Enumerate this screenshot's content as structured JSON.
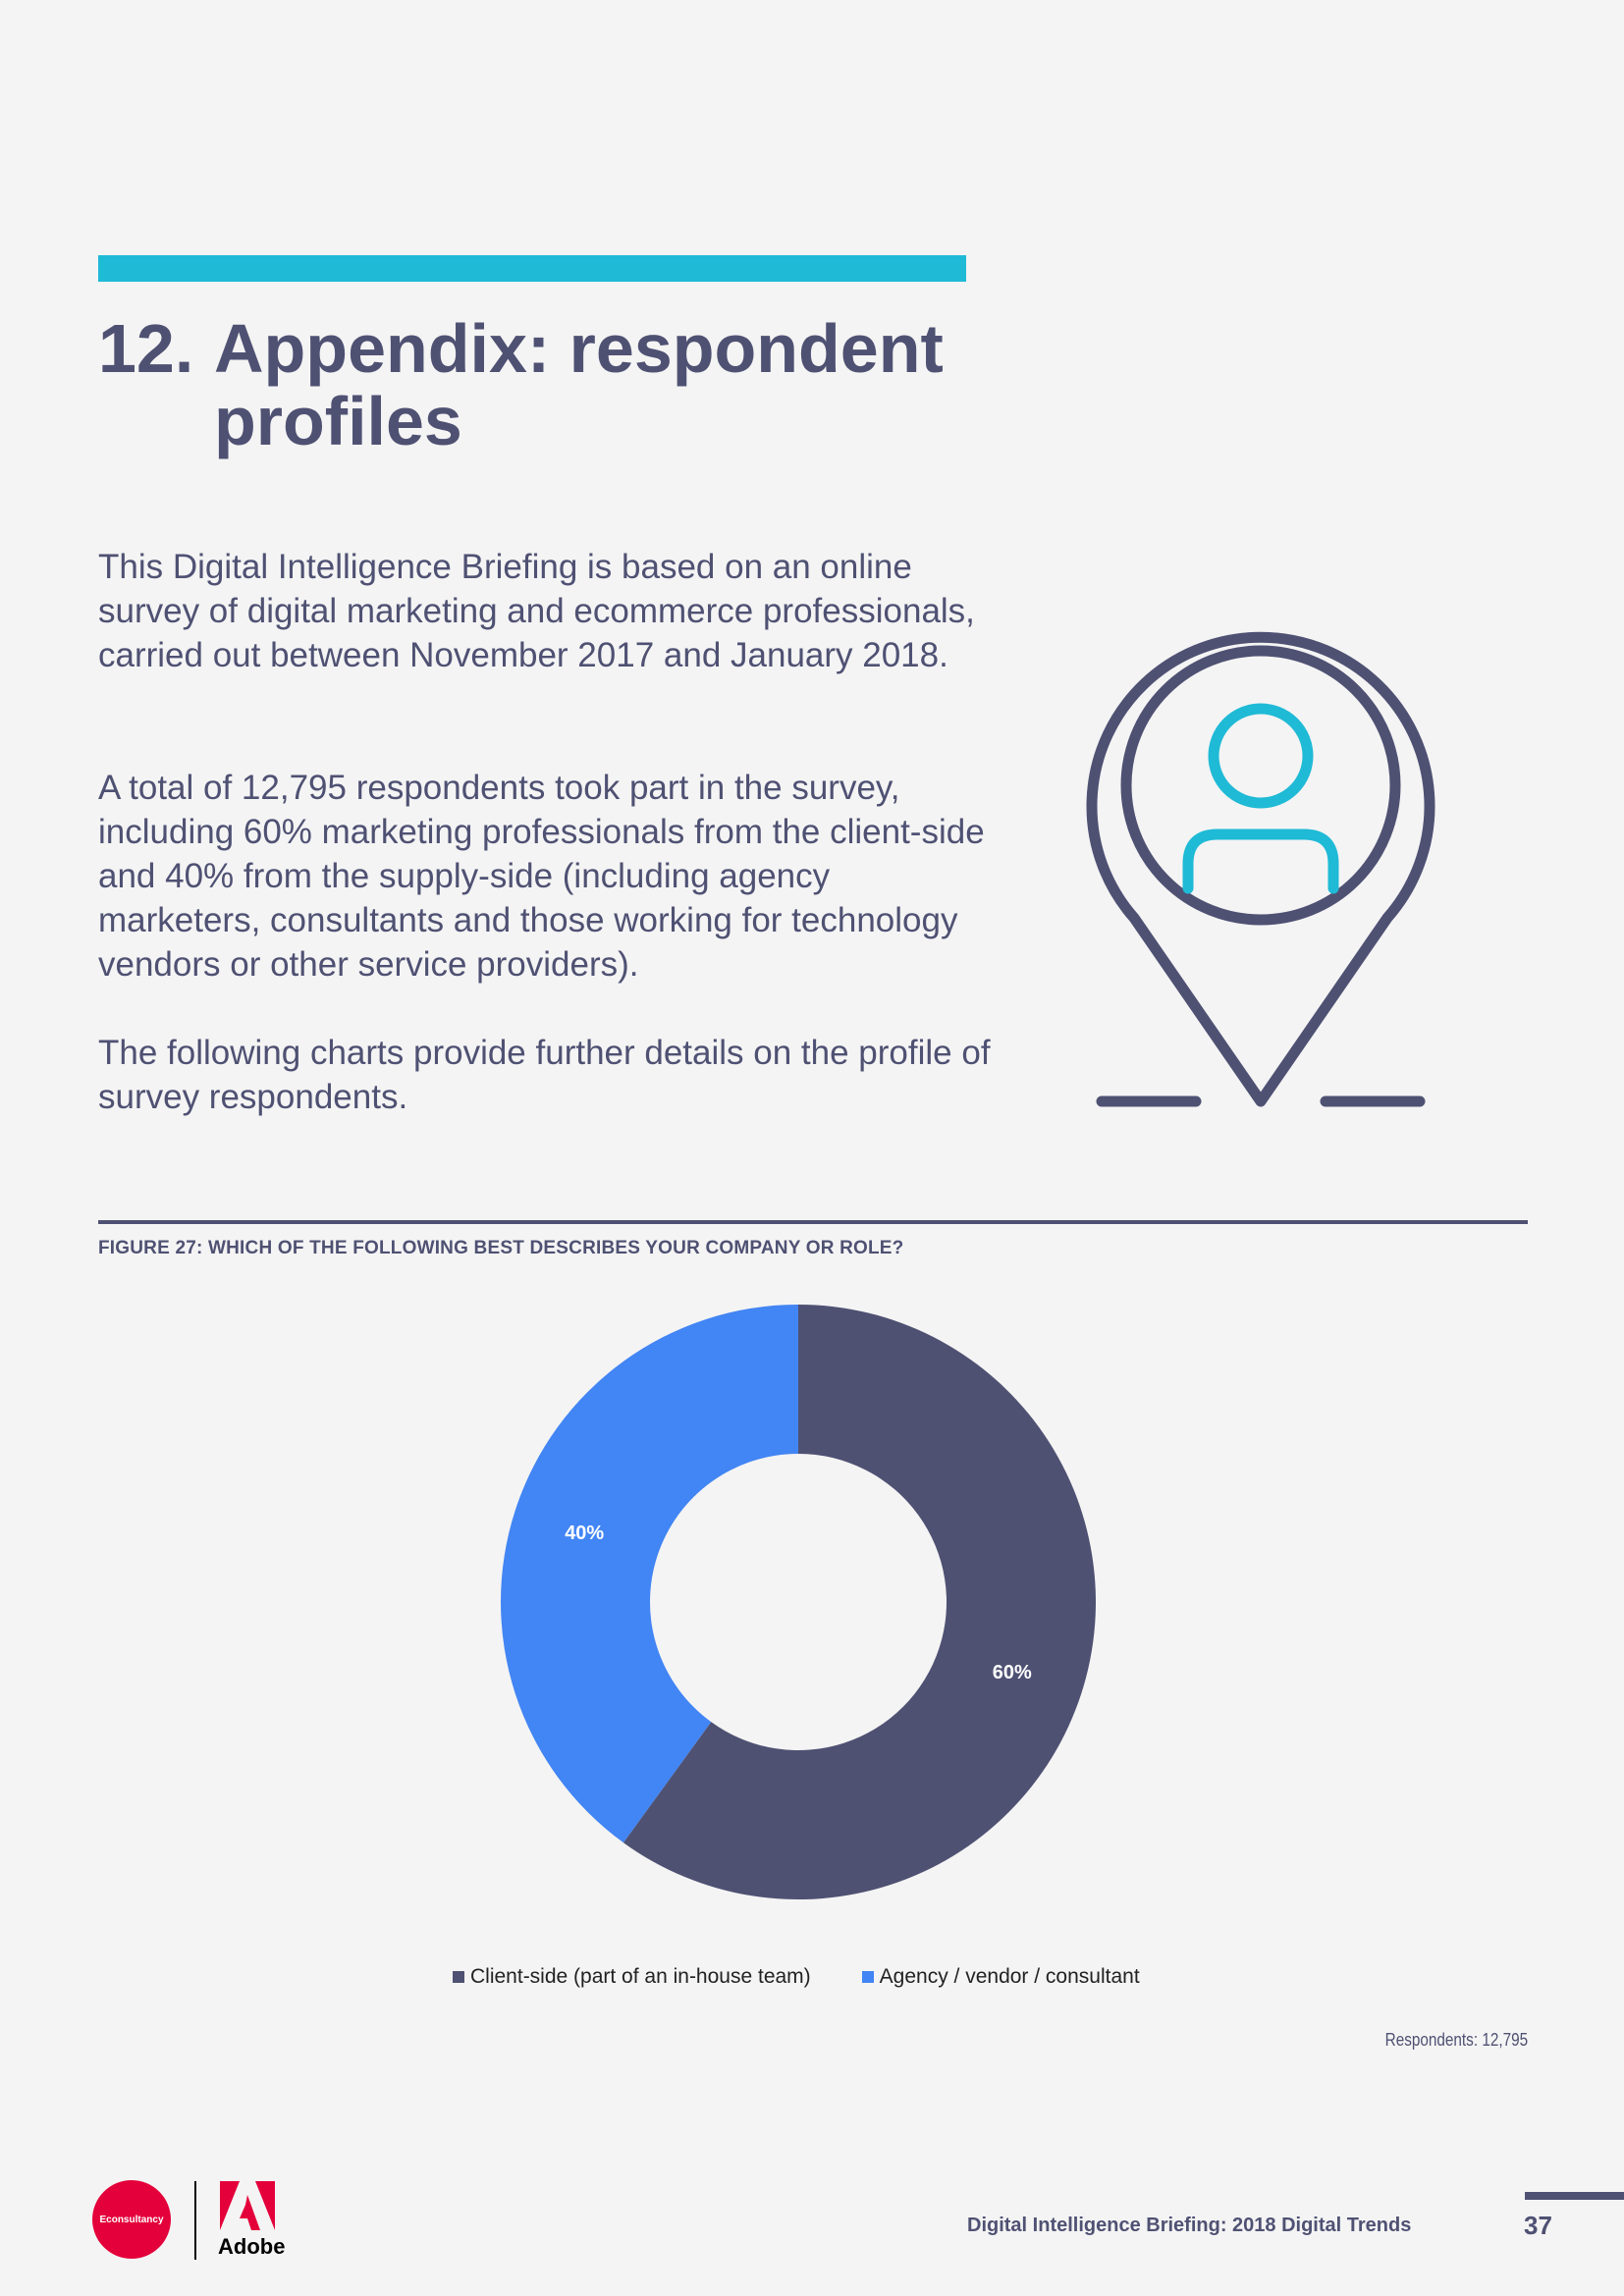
{
  "heading": {
    "number": "12.",
    "line1": "Appendix: respondent",
    "line2": "profiles"
  },
  "paragraphs": [
    "This Digital Intelligence Briefing is based on an online survey of digital marketing and ecommerce professionals, carried out between November 2017 and January 2018.",
    "A total of 12,795 respondents took part in the survey, including 60% marketing professionals from the client-side and 40% from the supply-side (including agency marketers, consultants and those working for technology vendors or other service providers).",
    "The following charts provide further details on the profile of survey respondents."
  ],
  "illustration": {
    "icon": "location-pin-person-icon",
    "colors": {
      "pin": "#4f5173",
      "person": "#1fbad6"
    }
  },
  "figure": {
    "caption": "FIGURE 27: WHICH OF THE FOLLOWING BEST DESCRIBES YOUR COMPANY OR ROLE?",
    "respondents": "Respondents: 12,795"
  },
  "chart_data": {
    "type": "pie",
    "donut": true,
    "title": "FIGURE 27: WHICH OF THE FOLLOWING BEST DESCRIBES YOUR COMPANY OR ROLE?",
    "categories": [
      "Client-side (part of an in-house team)",
      "Agency / vendor / consultant"
    ],
    "values": [
      60,
      40
    ],
    "labels": [
      "60%",
      "40%"
    ],
    "colors": [
      "#4f5173",
      "#4285f4"
    ],
    "legend": "bottom"
  },
  "footer": {
    "brand1": "Econsultancy",
    "brand2": "Adobe",
    "title": "Digital Intelligence Briefing: 2018 Digital Trends",
    "page": "37"
  },
  "colors": {
    "accent": "#1fbad6",
    "text": "#4f5173",
    "background": "#f4f4f4"
  }
}
